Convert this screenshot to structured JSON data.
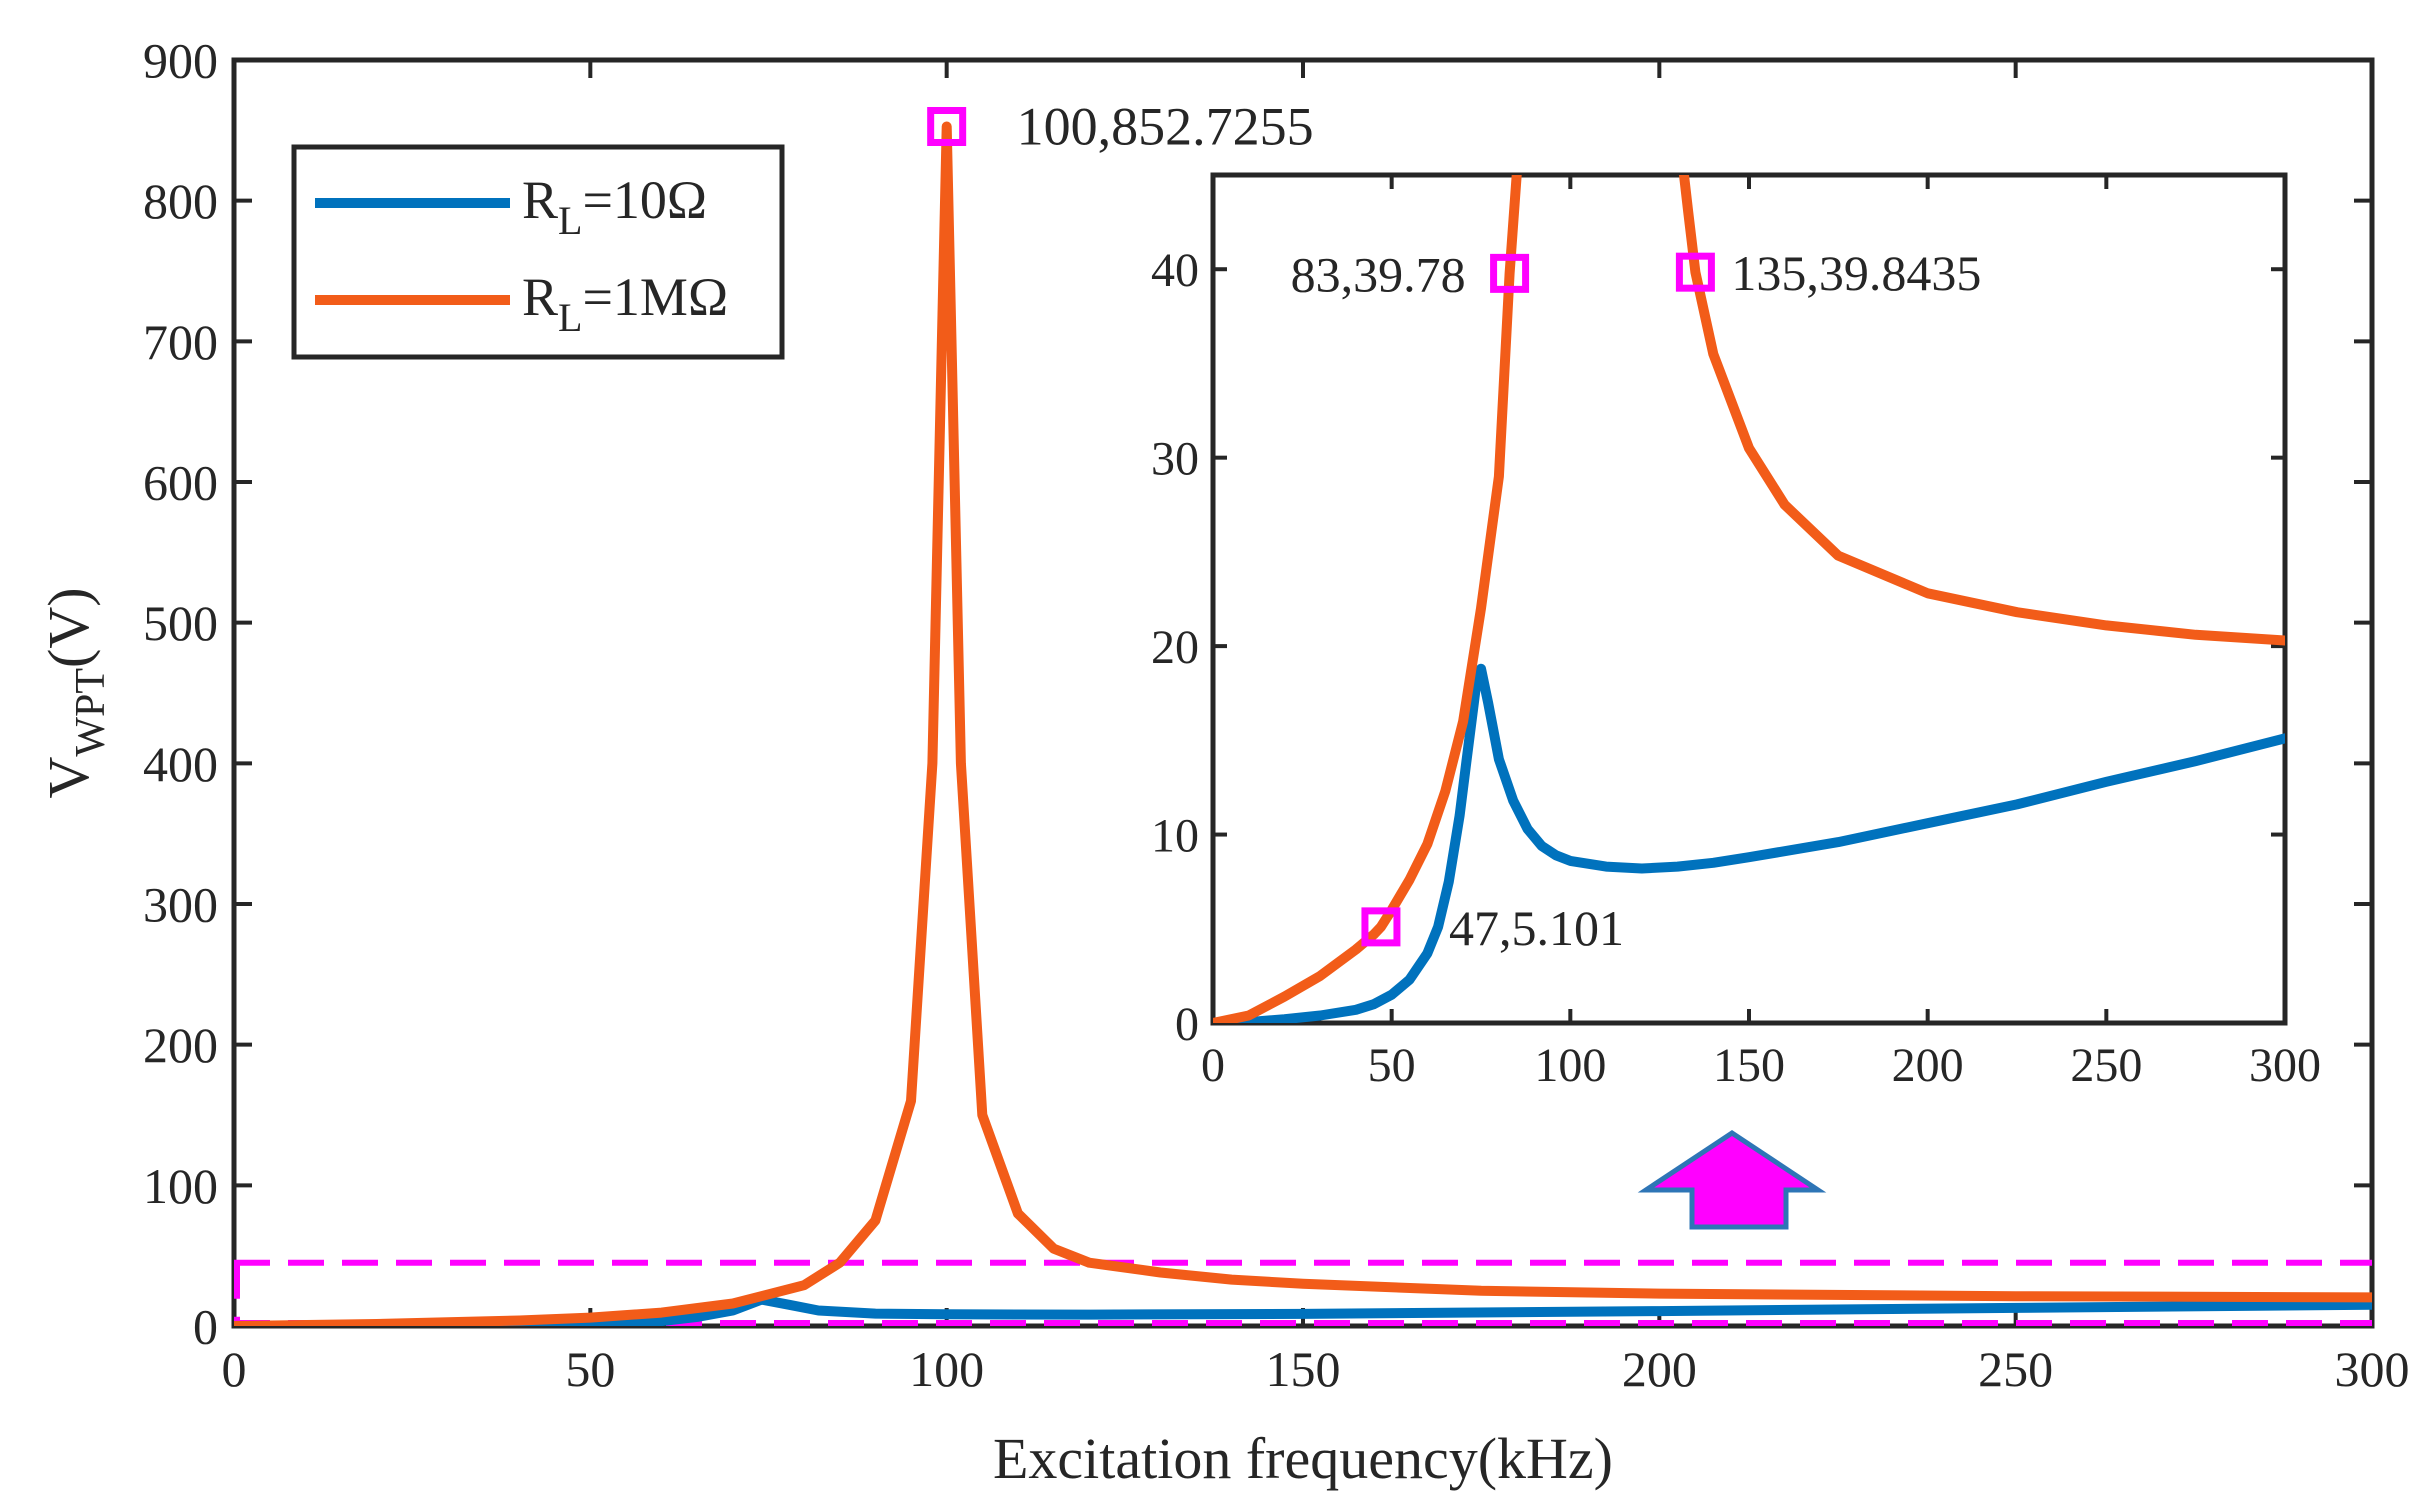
{
  "colors": {
    "rl10": "#0072BD",
    "rl1m": "#F25C19",
    "marker": "#FF00FF",
    "axis": "#262626",
    "tick_label": "#404040",
    "arrow_fill": "#FF00FF",
    "arrow_stroke": "#2E75B6"
  },
  "chart_data": [
    {
      "id": "main",
      "type": "line",
      "xlabel": "Excitation frequency(kHz)",
      "ylabel_main": "V",
      "ylabel_sub": "WPT",
      "ylabel_unit": "(V)",
      "xlim": [
        0,
        300
      ],
      "ylim": [
        0,
        900
      ],
      "xticks": [
        0,
        50,
        100,
        150,
        200,
        250,
        300
      ],
      "yticks": [
        0,
        100,
        200,
        300,
        400,
        500,
        600,
        700,
        800,
        900
      ],
      "grid": false,
      "legend": {
        "placement": "top-left",
        "entries": [
          {
            "base": "R",
            "sub": "L",
            "rest": "=10Ω",
            "series": "rl10"
          },
          {
            "base": "R",
            "sub": "L",
            "rest": "=1MΩ",
            "series": "rl1m"
          }
        ]
      },
      "series": [
        {
          "key": "rl10",
          "name": "RL=10Ω",
          "x": [
            0,
            20,
            40,
            50,
            60,
            65,
            70,
            74,
            78,
            82,
            90,
            100,
            120,
            150,
            200,
            250,
            300
          ],
          "y": [
            0,
            0.2,
            0.6,
            1.3,
            3.5,
            6.5,
            11,
            18.8,
            15,
            11,
            8.8,
            8.3,
            8.1,
            8.6,
            10.6,
            12.9,
            15.1
          ]
        },
        {
          "key": "rl1m",
          "name": "RL=1MΩ",
          "x": [
            0,
            20,
            40,
            50,
            60,
            70,
            80,
            85,
            90,
            95,
            98,
            100,
            102,
            105,
            110,
            115,
            120,
            130,
            140,
            150,
            175,
            200,
            250,
            300
          ],
          "y": [
            0,
            1.4,
            3.9,
            6,
            9.5,
            16,
            29,
            45,
            75,
            160,
            400,
            852.7,
            400,
            150,
            80,
            55,
            45,
            38,
            33,
            30,
            25,
            23,
            21.2,
            20.3
          ]
        }
      ],
      "annotations": [
        {
          "x": 100,
          "y": 852.7255,
          "label": "100,852.7255"
        }
      ],
      "zoom_region": {
        "x": [
          0,
          300
        ],
        "y": [
          0,
          45
        ]
      }
    },
    {
      "id": "inset",
      "type": "line",
      "xlim": [
        0,
        300
      ],
      "ylim": [
        0,
        45
      ],
      "xticks": [
        0,
        50,
        100,
        150,
        200,
        250,
        300
      ],
      "yticks": [
        0,
        10,
        20,
        30,
        40
      ],
      "grid": false,
      "series": [
        {
          "key": "rl10",
          "name": "RL=10Ω",
          "x": [
            0,
            10,
            20,
            30,
            40,
            45,
            50,
            55,
            60,
            63,
            66,
            69,
            71,
            73,
            74,
            75,
            77,
            80,
            84,
            88,
            92,
            96,
            100,
            110,
            120,
            130,
            140,
            150,
            175,
            200,
            225,
            250,
            275,
            300
          ],
          "y": [
            0,
            0.05,
            0.2,
            0.4,
            0.7,
            1.0,
            1.5,
            2.3,
            3.7,
            5.1,
            7.5,
            11,
            14,
            17,
            18.5,
            18.8,
            17,
            14,
            11.8,
            10.3,
            9.4,
            8.9,
            8.6,
            8.3,
            8.2,
            8.3,
            8.5,
            8.8,
            9.6,
            10.6,
            11.6,
            12.8,
            13.9,
            15.1
          ]
        },
        {
          "key": "rl1m",
          "name": "RL=1MΩ",
          "x": [
            0,
            10,
            20,
            30,
            40,
            45,
            47,
            50,
            55,
            60,
            65,
            70,
            75,
            80,
            83,
            85,
            88,
            128,
            130,
            133,
            135,
            140,
            150,
            160,
            175,
            200,
            225,
            250,
            275,
            300
          ],
          "y": [
            0,
            0.4,
            1.4,
            2.5,
            3.9,
            4.7,
            5.1,
            6.0,
            7.6,
            9.5,
            12.3,
            16,
            22,
            29,
            39.78,
            45,
            60,
            60,
            48,
            43,
            39.84,
            35.5,
            30.5,
            27.5,
            24.8,
            22.8,
            21.8,
            21.1,
            20.6,
            20.3
          ]
        }
      ],
      "annotations": [
        {
          "x": 83,
          "y": 39.78,
          "label": "83,39.78"
        },
        {
          "x": 135,
          "y": 39.8435,
          "label": "135,39.8435"
        },
        {
          "x": 47,
          "y": 5.101,
          "label": "47,5.101"
        }
      ]
    }
  ]
}
